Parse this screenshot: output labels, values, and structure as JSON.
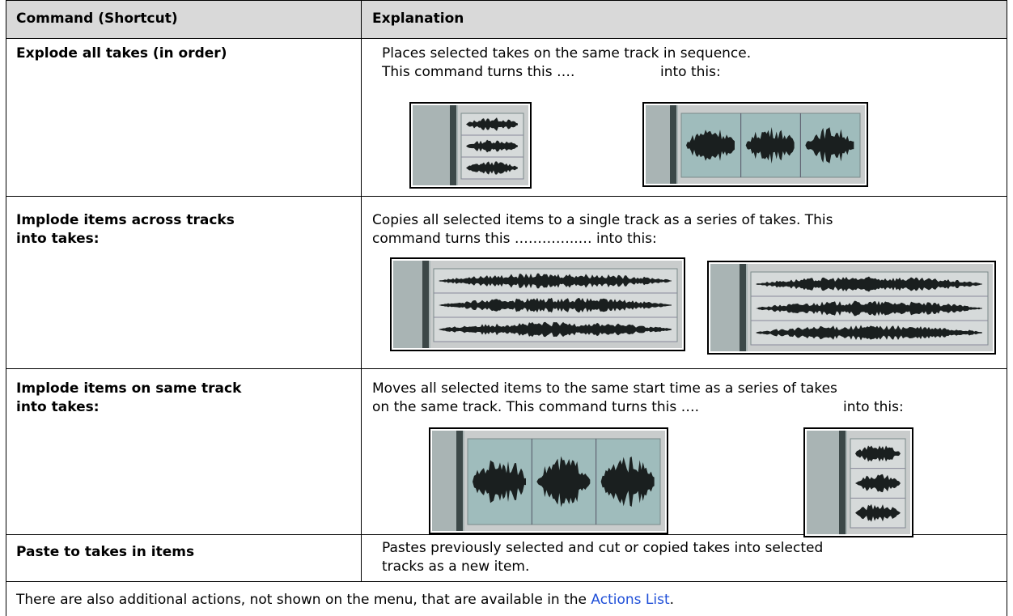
{
  "table": {
    "header": [
      "Command (Shortcut)",
      "Explanation"
    ],
    "rows": [
      {
        "command": [
          "Explode all takes (in order)"
        ],
        "lines": [
          "Places selected takes on the same track in sequence.",
          "This command turns this …."
        ],
        "after": "into this:"
      },
      {
        "command": [
          "Implode items across tracks",
          "into takes:"
        ],
        "lines": [
          "Copies all selected items to a single track as a series of takes. This",
          "command turns this …………..… into this:"
        ]
      },
      {
        "command": [
          "Implode items on same track",
          "into takes:"
        ],
        "lines": [
          "Moves all selected items to the same start time as a series of takes",
          "on the same track. This command turns this …."
        ],
        "after": "into this:"
      },
      {
        "command": [
          "Paste to takes in items"
        ],
        "lines": [
          "Pastes previously selected and cut or copied takes into selected",
          "tracks as a new item."
        ]
      }
    ],
    "footer": {
      "text": "There are also additional actions, not shown on the menu, that are available in the ",
      "link": "Actions List",
      "end": "."
    }
  }
}
